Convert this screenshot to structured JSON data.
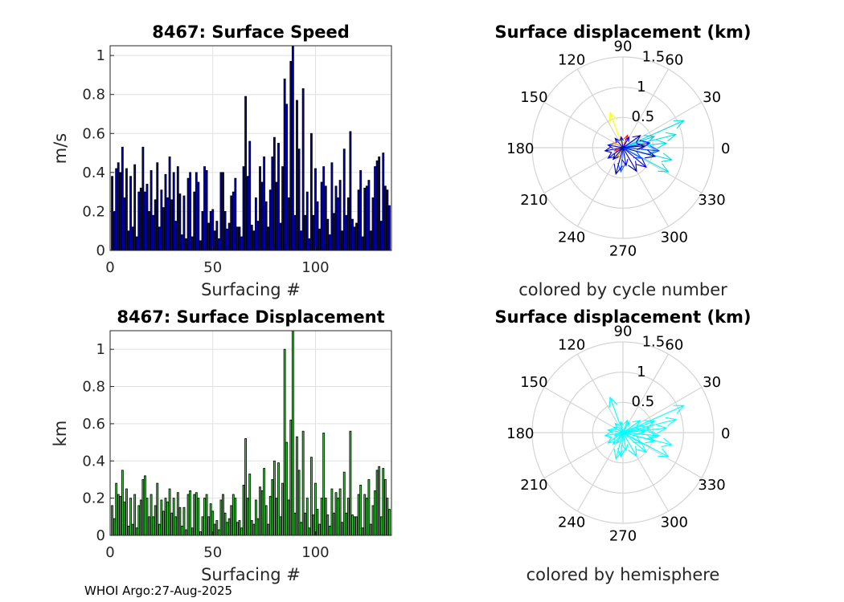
{
  "footer": "WHOI Argo:27-Aug-2025",
  "chart_data": [
    {
      "id": "speed",
      "type": "bar",
      "title": "8467: Surface Speed",
      "xlabel": "Surfacing #",
      "ylabel": "m/s",
      "xlim": [
        0,
        137
      ],
      "ylim": [
        0,
        1.05
      ],
      "xticks": [
        0,
        50,
        100
      ],
      "xtick_labels": [
        "0",
        "50",
        "100"
      ],
      "yticks": [
        0,
        0.2,
        0.4,
        0.6,
        0.8,
        1
      ],
      "ytick_labels": [
        "0",
        "0.2",
        "0.4",
        "0.6",
        "0.8",
        "1"
      ],
      "grid": true,
      "bar_color": "#0000b4",
      "x": [
        1,
        2,
        3,
        4,
        5,
        6,
        7,
        8,
        9,
        10,
        11,
        12,
        13,
        14,
        15,
        16,
        17,
        18,
        19,
        20,
        21,
        22,
        23,
        24,
        25,
        26,
        27,
        28,
        29,
        30,
        31,
        32,
        33,
        34,
        35,
        36,
        37,
        38,
        39,
        40,
        41,
        42,
        43,
        44,
        45,
        46,
        47,
        48,
        49,
        50,
        51,
        52,
        53,
        54,
        55,
        56,
        57,
        58,
        59,
        60,
        61,
        62,
        63,
        64,
        65,
        66,
        67,
        68,
        69,
        70,
        71,
        72,
        73,
        74,
        75,
        76,
        77,
        78,
        79,
        80,
        81,
        82,
        83,
        84,
        85,
        86,
        87,
        88,
        89,
        90,
        91,
        92,
        93,
        94,
        95,
        96,
        97,
        98,
        99,
        100,
        101,
        102,
        103,
        104,
        105,
        106,
        107,
        108,
        109,
        110,
        111,
        112,
        113,
        114,
        115,
        116,
        117,
        118,
        119,
        120,
        121,
        122,
        123,
        124,
        125,
        126,
        127,
        128,
        129,
        130,
        131,
        132,
        133,
        134,
        135,
        136
      ],
      "values": [
        0.38,
        0.2,
        0.42,
        0.45,
        0.4,
        0.53,
        0.27,
        0.42,
        0.1,
        0.38,
        0.12,
        0.44,
        0.07,
        0.3,
        0.32,
        0.53,
        0.3,
        0.34,
        0.2,
        0.41,
        0.18,
        0.26,
        0.45,
        0.12,
        0.31,
        0.22,
        0.39,
        0.27,
        0.48,
        0.26,
        0.4,
        0.15,
        0.43,
        0.29,
        0.08,
        0.28,
        0.06,
        0.37,
        0.4,
        0.07,
        0.3,
        0.4,
        0.35,
        0.05,
        0.2,
        0.43,
        0.41,
        0.14,
        0.2,
        0.21,
        0.1,
        0.15,
        0.06,
        0.4,
        0.4,
        0.2,
        0.11,
        0.14,
        0.28,
        0.3,
        0.37,
        0.12,
        0.12,
        0.07,
        0.43,
        0.79,
        0.38,
        0.56,
        0.13,
        0.1,
        0.27,
        0.15,
        0.43,
        0.35,
        0.48,
        0.25,
        0.12,
        0.31,
        0.48,
        0.58,
        0.35,
        0.55,
        0.14,
        0.43,
        0.88,
        0.75,
        0.27,
        0.97,
        1.05,
        0.18,
        0.77,
        0.52,
        0.1,
        0.83,
        0.18,
        0.3,
        0.06,
        0.6,
        0.18,
        0.42,
        0.25,
        0.11,
        0.35,
        0.43,
        0.33,
        0.16,
        0.08,
        0.45,
        0.19,
        0.33,
        0.27,
        0.36,
        0.1,
        0.52,
        0.18,
        0.27,
        0.61,
        0.16,
        0.12,
        0.14,
        0.31,
        0.41,
        0.07,
        0.32,
        0.33,
        0.36,
        0.1,
        0.27,
        0.43,
        0.46,
        0.48,
        0.15,
        0.5,
        0.33,
        0.31,
        0.23
      ]
    },
    {
      "id": "displacement",
      "type": "bar",
      "title": "8467: Surface Displacement",
      "xlabel": "Surfacing #",
      "ylabel": "km",
      "xlim": [
        0,
        137
      ],
      "ylim": [
        0,
        1.1
      ],
      "xticks": [
        0,
        50,
        100
      ],
      "xtick_labels": [
        "0",
        "50",
        "100"
      ],
      "yticks": [
        0,
        0.2,
        0.4,
        0.6,
        0.8,
        1
      ],
      "ytick_labels": [
        "0",
        "0.2",
        "0.4",
        "0.6",
        "0.8",
        "1"
      ],
      "grid": true,
      "bar_color": "#3cc83c",
      "x": [
        1,
        2,
        3,
        4,
        5,
        6,
        7,
        8,
        9,
        10,
        11,
        12,
        13,
        14,
        15,
        16,
        17,
        18,
        19,
        20,
        21,
        22,
        23,
        24,
        25,
        26,
        27,
        28,
        29,
        30,
        31,
        32,
        33,
        34,
        35,
        36,
        37,
        38,
        39,
        40,
        41,
        42,
        43,
        44,
        45,
        46,
        47,
        48,
        49,
        50,
        51,
        52,
        53,
        54,
        55,
        56,
        57,
        58,
        59,
        60,
        61,
        62,
        63,
        64,
        65,
        66,
        67,
        68,
        69,
        70,
        71,
        72,
        73,
        74,
        75,
        76,
        77,
        78,
        79,
        80,
        81,
        82,
        83,
        84,
        85,
        86,
        87,
        88,
        89,
        90,
        91,
        92,
        93,
        94,
        95,
        96,
        97,
        98,
        99,
        100,
        101,
        102,
        103,
        104,
        105,
        106,
        107,
        108,
        109,
        110,
        111,
        112,
        113,
        114,
        115,
        116,
        117,
        118,
        119,
        120,
        121,
        122,
        123,
        124,
        125,
        126,
        127,
        128,
        129,
        130,
        131,
        132,
        133,
        134,
        135,
        136
      ],
      "values": [
        0.16,
        0.09,
        0.28,
        0.22,
        0.21,
        0.35,
        0.18,
        0.25,
        0.05,
        0.2,
        0.06,
        0.22,
        0.04,
        0.16,
        0.19,
        0.3,
        0.32,
        0.2,
        0.1,
        0.22,
        0.1,
        0.16,
        0.28,
        0.06,
        0.19,
        0.13,
        0.2,
        0.18,
        0.25,
        0.12,
        0.2,
        0.1,
        0.23,
        0.15,
        0.05,
        0.15,
        0.03,
        0.22,
        0.24,
        0.04,
        0.22,
        0.23,
        0.2,
        0.02,
        0.1,
        0.2,
        0.22,
        0.1,
        0.17,
        0.13,
        0.06,
        0.08,
        0.03,
        0.19,
        0.22,
        0.12,
        0.07,
        0.09,
        0.16,
        0.22,
        0.2,
        0.07,
        0.08,
        0.04,
        0.27,
        0.52,
        0.2,
        0.33,
        0.08,
        0.06,
        0.19,
        0.09,
        0.26,
        0.24,
        0.36,
        0.16,
        0.06,
        0.21,
        0.3,
        0.4,
        0.2,
        0.39,
        0.1,
        0.28,
        1.0,
        0.5,
        0.19,
        0.62,
        1.1,
        0.12,
        0.53,
        0.35,
        0.07,
        0.56,
        0.12,
        0.2,
        0.04,
        0.42,
        0.11,
        0.28,
        0.14,
        0.06,
        0.2,
        0.55,
        0.2,
        0.11,
        0.05,
        0.25,
        0.12,
        0.23,
        0.2,
        0.25,
        0.07,
        0.34,
        0.12,
        0.2,
        0.56,
        0.11,
        0.1,
        0.1,
        0.22,
        0.27,
        0.04,
        0.22,
        0.2,
        0.3,
        0.06,
        0.16,
        0.24,
        0.35,
        0.37,
        0.1,
        0.36,
        0.3,
        0.2,
        0.14
      ]
    },
    {
      "id": "polar-cycle",
      "type": "polar-compass",
      "title": "Surface displacement (km)",
      "caption": "colored by cycle number",
      "rmax": 1.5,
      "r_ticks": [
        0.5,
        1,
        1.5
      ],
      "r_tick_labels": [
        "0.5",
        "1",
        "1.5"
      ],
      "angle_ticks": [
        0,
        30,
        60,
        90,
        120,
        150,
        180,
        210,
        240,
        270,
        300,
        330
      ],
      "angle_tick_labels": [
        "0",
        "30",
        "60",
        "90",
        "120",
        "150",
        "180",
        "210",
        "240",
        "270",
        "300",
        "330"
      ],
      "arrows": [
        {
          "angle": 24,
          "r": 1.1,
          "color": "#00e0e0"
        },
        {
          "angle": 14,
          "r": 0.9,
          "color": "#00e0e0"
        },
        {
          "angle": 6,
          "r": 0.72,
          "color": "#00e0e0"
        },
        {
          "angle": -14,
          "r": 0.83,
          "color": "#00e0e0"
        },
        {
          "angle": -28,
          "r": 0.85,
          "color": "#00e0e0"
        },
        {
          "angle": 20,
          "r": 0.55,
          "color": "#00c8ff"
        },
        {
          "angle": -5,
          "r": 0.55,
          "color": "#40b0ff"
        },
        {
          "angle": 110,
          "r": 0.62,
          "color": "#ffff00"
        },
        {
          "angle": 150,
          "r": 0.18,
          "color": "#ffa000"
        },
        {
          "angle": 200,
          "r": 0.15,
          "color": "#ff3000"
        },
        {
          "angle": 240,
          "r": 0.2,
          "color": "#ffa000"
        },
        {
          "angle": 70,
          "r": 0.22,
          "color": "#ff2000"
        },
        {
          "angle": 265,
          "r": 0.4,
          "color": "#2060ff"
        },
        {
          "angle": 255,
          "r": 0.45,
          "color": "#0000c0"
        },
        {
          "angle": 170,
          "r": 0.25,
          "color": "#0000ff"
        },
        {
          "angle": 190,
          "r": 0.3,
          "color": "#0000c0"
        },
        {
          "angle": 215,
          "r": 0.3,
          "color": "#0000ff"
        },
        {
          "angle": 300,
          "r": 0.45,
          "color": "#0000c0"
        },
        {
          "angle": 320,
          "r": 0.5,
          "color": "#0000ff"
        },
        {
          "angle": 345,
          "r": 0.55,
          "color": "#0000c0"
        },
        {
          "angle": 10,
          "r": 0.45,
          "color": "#0000ff"
        },
        {
          "angle": 35,
          "r": 0.35,
          "color": "#0000c0"
        },
        {
          "angle": 60,
          "r": 0.2,
          "color": "#0000ff"
        },
        {
          "angle": 100,
          "r": 0.18,
          "color": "#0000c0"
        },
        {
          "angle": 130,
          "r": 0.2,
          "color": "#0000ff"
        },
        {
          "angle": 280,
          "r": 0.3,
          "color": "#0000ff"
        },
        {
          "angle": 230,
          "r": 0.25,
          "color": "#00008b"
        },
        {
          "angle": 330,
          "r": 0.35,
          "color": "#2040ff"
        },
        {
          "angle": 355,
          "r": 0.6,
          "color": "#0050ff"
        },
        {
          "angle": 5,
          "r": 0.35,
          "color": "#00008b"
        }
      ]
    },
    {
      "id": "polar-hemisphere",
      "type": "polar-compass",
      "title": "Surface displacement (km)",
      "caption": "colored by hemisphere",
      "rmax": 1.5,
      "r_ticks": [
        0.5,
        1,
        1.5
      ],
      "r_tick_labels": [
        "0.5",
        "1",
        "1.5"
      ],
      "angle_ticks": [
        0,
        30,
        60,
        90,
        120,
        150,
        180,
        210,
        240,
        270,
        300,
        330
      ],
      "angle_tick_labels": [
        "0",
        "30",
        "60",
        "90",
        "120",
        "150",
        "180",
        "210",
        "240",
        "270",
        "300",
        "330"
      ],
      "arrow_color": "#00ffff",
      "arrows": [
        {
          "angle": 24,
          "r": 1.1
        },
        {
          "angle": 14,
          "r": 0.9
        },
        {
          "angle": 6,
          "r": 0.72
        },
        {
          "angle": -14,
          "r": 0.83
        },
        {
          "angle": -28,
          "r": 0.85
        },
        {
          "angle": 20,
          "r": 0.55
        },
        {
          "angle": -5,
          "r": 0.55
        },
        {
          "angle": 110,
          "r": 0.62
        },
        {
          "angle": 150,
          "r": 0.18
        },
        {
          "angle": 200,
          "r": 0.15
        },
        {
          "angle": 240,
          "r": 0.2
        },
        {
          "angle": 70,
          "r": 0.22
        },
        {
          "angle": 265,
          "r": 0.4
        },
        {
          "angle": 255,
          "r": 0.45
        },
        {
          "angle": 170,
          "r": 0.25
        },
        {
          "angle": 190,
          "r": 0.3
        },
        {
          "angle": 215,
          "r": 0.3
        },
        {
          "angle": 300,
          "r": 0.45
        },
        {
          "angle": 320,
          "r": 0.5
        },
        {
          "angle": 345,
          "r": 0.55
        },
        {
          "angle": 10,
          "r": 0.45
        },
        {
          "angle": 35,
          "r": 0.35
        },
        {
          "angle": 60,
          "r": 0.2
        },
        {
          "angle": 100,
          "r": 0.18
        },
        {
          "angle": 130,
          "r": 0.2
        },
        {
          "angle": 280,
          "r": 0.3
        },
        {
          "angle": 230,
          "r": 0.25
        },
        {
          "angle": 330,
          "r": 0.35
        },
        {
          "angle": 355,
          "r": 0.6
        },
        {
          "angle": 5,
          "r": 0.35
        }
      ]
    }
  ]
}
